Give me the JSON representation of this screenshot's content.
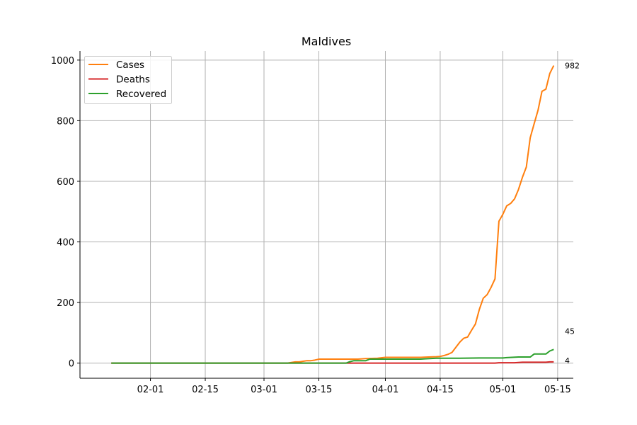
{
  "chart_data": {
    "type": "line",
    "title": "Maldives",
    "xlabel": "",
    "ylabel": "",
    "x_start": "2020-01-22",
    "x_end": "2020-05-14",
    "xlim": [
      "2020-01-14",
      "2020-05-19"
    ],
    "ylim": [
      -50,
      1030
    ],
    "grid": true,
    "legend_position": "top-left",
    "x_ticks": [
      {
        "date": "2020-02-01",
        "label": "02-01"
      },
      {
        "date": "2020-02-15",
        "label": "02-15"
      },
      {
        "date": "2020-03-01",
        "label": "03-01"
      },
      {
        "date": "2020-03-15",
        "label": "03-15"
      },
      {
        "date": "2020-04-01",
        "label": "04-01"
      },
      {
        "date": "2020-04-15",
        "label": "04-15"
      },
      {
        "date": "2020-05-01",
        "label": "05-01"
      },
      {
        "date": "2020-05-15",
        "label": "05-15"
      }
    ],
    "y_ticks": [
      0,
      200,
      400,
      600,
      800,
      1000
    ],
    "series": [
      {
        "name": "Cases",
        "color": "#ff7f0e",
        "end_label": "982",
        "points": [
          [
            "2020-01-22",
            0
          ],
          [
            "2020-03-07",
            0
          ],
          [
            "2020-03-08",
            2
          ],
          [
            "2020-03-09",
            4
          ],
          [
            "2020-03-10",
            4
          ],
          [
            "2020-03-11",
            6
          ],
          [
            "2020-03-12",
            8
          ],
          [
            "2020-03-13",
            8
          ],
          [
            "2020-03-14",
            10
          ],
          [
            "2020-03-15",
            13
          ],
          [
            "2020-03-20",
            13
          ],
          [
            "2020-03-25",
            13
          ],
          [
            "2020-03-27",
            15
          ],
          [
            "2020-03-30",
            16
          ],
          [
            "2020-04-01",
            19
          ],
          [
            "2020-04-05",
            19
          ],
          [
            "2020-04-10",
            19
          ],
          [
            "2020-04-12",
            20
          ],
          [
            "2020-04-14",
            21
          ],
          [
            "2020-04-15",
            22
          ],
          [
            "2020-04-16",
            25
          ],
          [
            "2020-04-17",
            29
          ],
          [
            "2020-04-18",
            35
          ],
          [
            "2020-04-19",
            52
          ],
          [
            "2020-04-20",
            69
          ],
          [
            "2020-04-21",
            82
          ],
          [
            "2020-04-22",
            86
          ],
          [
            "2020-04-23",
            108
          ],
          [
            "2020-04-24",
            129
          ],
          [
            "2020-04-25",
            177
          ],
          [
            "2020-04-26",
            214
          ],
          [
            "2020-04-27",
            226
          ],
          [
            "2020-04-28",
            250
          ],
          [
            "2020-04-29",
            278
          ],
          [
            "2020-04-30",
            468
          ],
          [
            "2020-05-01",
            491
          ],
          [
            "2020-05-02",
            519
          ],
          [
            "2020-05-03",
            527
          ],
          [
            "2020-05-04",
            542
          ],
          [
            "2020-05-05",
            573
          ],
          [
            "2020-05-06",
            613
          ],
          [
            "2020-05-07",
            647
          ],
          [
            "2020-05-08",
            744
          ],
          [
            "2020-05-09",
            790
          ],
          [
            "2020-05-10",
            835
          ],
          [
            "2020-05-11",
            897
          ],
          [
            "2020-05-12",
            904
          ],
          [
            "2020-05-13",
            956
          ],
          [
            "2020-05-14",
            982
          ]
        ]
      },
      {
        "name": "Deaths",
        "color": "#d62728",
        "end_label": "4",
        "points": [
          [
            "2020-01-22",
            0
          ],
          [
            "2020-04-29",
            0
          ],
          [
            "2020-04-30",
            1
          ],
          [
            "2020-05-04",
            1
          ],
          [
            "2020-05-05",
            2
          ],
          [
            "2020-05-06",
            3
          ],
          [
            "2020-05-07",
            3
          ],
          [
            "2020-05-12",
            3
          ],
          [
            "2020-05-13",
            4
          ],
          [
            "2020-05-14",
            4
          ]
        ]
      },
      {
        "name": "Recovered",
        "color": "#2ca02c",
        "end_label": "45",
        "points": [
          [
            "2020-01-22",
            0
          ],
          [
            "2020-03-22",
            0
          ],
          [
            "2020-03-23",
            5
          ],
          [
            "2020-03-24",
            8
          ],
          [
            "2020-03-27",
            8
          ],
          [
            "2020-03-28",
            13
          ],
          [
            "2020-04-10",
            13
          ],
          [
            "2020-04-11",
            14
          ],
          [
            "2020-04-14",
            16
          ],
          [
            "2020-04-20",
            16
          ],
          [
            "2020-04-25",
            17
          ],
          [
            "2020-05-01",
            17
          ],
          [
            "2020-05-02",
            18
          ],
          [
            "2020-05-05",
            20
          ],
          [
            "2020-05-08",
            20
          ],
          [
            "2020-05-09",
            30
          ],
          [
            "2020-05-12",
            30
          ],
          [
            "2020-05-13",
            40
          ],
          [
            "2020-05-14",
            45
          ]
        ]
      }
    ]
  }
}
